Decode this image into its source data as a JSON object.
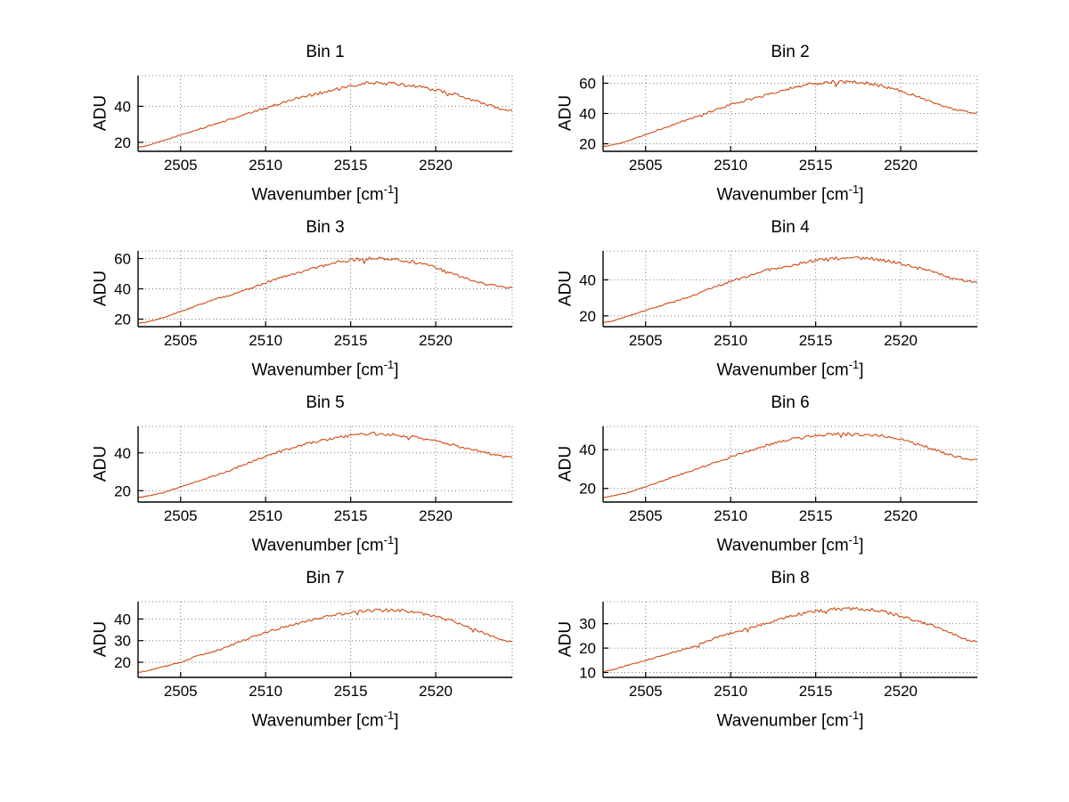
{
  "figure": {
    "background": "#ffffff",
    "line_color": "#cf4a12",
    "grid_color": "#7a7a7a",
    "axis_color": "#000000",
    "ylabel": "ADU",
    "xlabel": {
      "prefix": "Wavenumber [cm",
      "sup": "-1",
      "suffix": "]",
      "text": "Wavenumber [cm^-1]"
    }
  },
  "chart_data": [
    {
      "type": "line",
      "title": "Bin 1",
      "xlabel": "Wavenumber [cm^-1]",
      "ylabel": "ADU",
      "xlim": [
        2502.5,
        2524.5
      ],
      "ylim": [
        15,
        57
      ],
      "xticks": [
        2505,
        2510,
        2515,
        2520
      ],
      "yticks": [
        20,
        40
      ],
      "grid": true,
      "x": [
        2503,
        2504,
        2505,
        2506,
        2507,
        2508,
        2509,
        2510,
        2511,
        2512,
        2513,
        2514,
        2515,
        2516,
        2517,
        2518,
        2519,
        2520,
        2521,
        2522,
        2523,
        2524
      ],
      "y": [
        18,
        21,
        24,
        27,
        30,
        33,
        36,
        39,
        42,
        45,
        47,
        49,
        51,
        53,
        53,
        52,
        51,
        49,
        47,
        44,
        41,
        38
      ]
    },
    {
      "type": "line",
      "title": "Bin 2",
      "xlabel": "Wavenumber [cm^-1]",
      "ylabel": "ADU",
      "xlim": [
        2502.5,
        2524.5
      ],
      "ylim": [
        15,
        65
      ],
      "xticks": [
        2505,
        2510,
        2515,
        2520
      ],
      "yticks": [
        20,
        40,
        60
      ],
      "grid": true,
      "x": [
        2503,
        2504,
        2505,
        2506,
        2507,
        2508,
        2509,
        2510,
        2511,
        2512,
        2513,
        2514,
        2515,
        2516,
        2517,
        2518,
        2519,
        2520,
        2521,
        2522,
        2523,
        2524
      ],
      "y": [
        19,
        22,
        26,
        30,
        34,
        38,
        42,
        46,
        49,
        52,
        55,
        58,
        60,
        61,
        61,
        60,
        58,
        55,
        51,
        47,
        43,
        41
      ]
    },
    {
      "type": "line",
      "title": "Bin 3",
      "xlabel": "Wavenumber [cm^-1]",
      "ylabel": "ADU",
      "xlim": [
        2502.5,
        2524.5
      ],
      "ylim": [
        15,
        65
      ],
      "xticks": [
        2505,
        2510,
        2515,
        2520
      ],
      "yticks": [
        20,
        40,
        60
      ],
      "grid": true,
      "x": [
        2503,
        2504,
        2505,
        2506,
        2507,
        2508,
        2509,
        2510,
        2511,
        2512,
        2513,
        2514,
        2515,
        2516,
        2517,
        2518,
        2519,
        2520,
        2521,
        2522,
        2523,
        2524
      ],
      "y": [
        18,
        21,
        25,
        29,
        33,
        36,
        40,
        44,
        48,
        51,
        54,
        57,
        59,
        60,
        60,
        59,
        57,
        54,
        50,
        46,
        43,
        41
      ]
    },
    {
      "type": "line",
      "title": "Bin 4",
      "xlabel": "Wavenumber [cm^-1]",
      "ylabel": "ADU",
      "xlim": [
        2502.5,
        2524.5
      ],
      "ylim": [
        14,
        56
      ],
      "xticks": [
        2505,
        2510,
        2515,
        2520
      ],
      "yticks": [
        20,
        40
      ],
      "grid": true,
      "x": [
        2503,
        2504,
        2505,
        2506,
        2507,
        2508,
        2509,
        2510,
        2511,
        2512,
        2513,
        2514,
        2515,
        2516,
        2517,
        2518,
        2519,
        2520,
        2521,
        2522,
        2523,
        2524
      ],
      "y": [
        17,
        20,
        23,
        26,
        29,
        32,
        36,
        39,
        42,
        45,
        47,
        49,
        51,
        52,
        52,
        52,
        51,
        49,
        47,
        44,
        41,
        39
      ]
    },
    {
      "type": "line",
      "title": "Bin 5",
      "xlabel": "Wavenumber [cm^-1]",
      "ylabel": "ADU",
      "xlim": [
        2502.5,
        2524.5
      ],
      "ylim": [
        14,
        54
      ],
      "xticks": [
        2505,
        2510,
        2515,
        2520
      ],
      "yticks": [
        20,
        40
      ],
      "grid": true,
      "x": [
        2503,
        2504,
        2505,
        2506,
        2507,
        2508,
        2509,
        2510,
        2511,
        2512,
        2513,
        2514,
        2515,
        2516,
        2517,
        2518,
        2519,
        2520,
        2521,
        2522,
        2523,
        2524
      ],
      "y": [
        17,
        19,
        22,
        25,
        28,
        31,
        35,
        38,
        41,
        44,
        46,
        48,
        49,
        50,
        50,
        49,
        48,
        46,
        44,
        42,
        40,
        38
      ]
    },
    {
      "type": "line",
      "title": "Bin 6",
      "xlabel": "Wavenumber [cm^-1]",
      "ylabel": "ADU",
      "xlim": [
        2502.5,
        2524.5
      ],
      "ylim": [
        13,
        52
      ],
      "xticks": [
        2505,
        2510,
        2515,
        2520
      ],
      "yticks": [
        20,
        40
      ],
      "grid": true,
      "x": [
        2503,
        2504,
        2505,
        2506,
        2507,
        2508,
        2509,
        2510,
        2511,
        2512,
        2513,
        2514,
        2515,
        2516,
        2517,
        2518,
        2519,
        2520,
        2521,
        2522,
        2523,
        2524
      ],
      "y": [
        16,
        18,
        21,
        24,
        27,
        30,
        33,
        36,
        39,
        42,
        44,
        46,
        47,
        48,
        48,
        48,
        47,
        45,
        43,
        40,
        37,
        35
      ]
    },
    {
      "type": "line",
      "title": "Bin 7",
      "xlabel": "Wavenumber [cm^-1]",
      "ylabel": "ADU",
      "xlim": [
        2502.5,
        2524.5
      ],
      "ylim": [
        13,
        48
      ],
      "xticks": [
        2505,
        2510,
        2515,
        2520
      ],
      "yticks": [
        20,
        30,
        40
      ],
      "grid": true,
      "x": [
        2503,
        2504,
        2505,
        2506,
        2507,
        2508,
        2509,
        2510,
        2511,
        2512,
        2513,
        2514,
        2515,
        2516,
        2517,
        2518,
        2519,
        2520,
        2521,
        2522,
        2523,
        2524
      ],
      "y": [
        16,
        18,
        20,
        23,
        25,
        28,
        31,
        34,
        36,
        38,
        40,
        42,
        43,
        44,
        44,
        44,
        43,
        41,
        39,
        36,
        33,
        30
      ]
    },
    {
      "type": "line",
      "title": "Bin 8",
      "xlabel": "Wavenumber [cm^-1]",
      "ylabel": "ADU",
      "xlim": [
        2502.5,
        2524.5
      ],
      "ylim": [
        8,
        39
      ],
      "xticks": [
        2505,
        2510,
        2515,
        2520
      ],
      "yticks": [
        10,
        20,
        30
      ],
      "grid": true,
      "x": [
        2503,
        2504,
        2505,
        2506,
        2507,
        2508,
        2509,
        2510,
        2511,
        2512,
        2513,
        2514,
        2515,
        2516,
        2517,
        2518,
        2519,
        2520,
        2521,
        2522,
        2523,
        2524
      ],
      "y": [
        11,
        13,
        15,
        17,
        19,
        21,
        24,
        26,
        28,
        30,
        32,
        34,
        35,
        36,
        36,
        36,
        35,
        33,
        31,
        29,
        26,
        23
      ]
    }
  ]
}
